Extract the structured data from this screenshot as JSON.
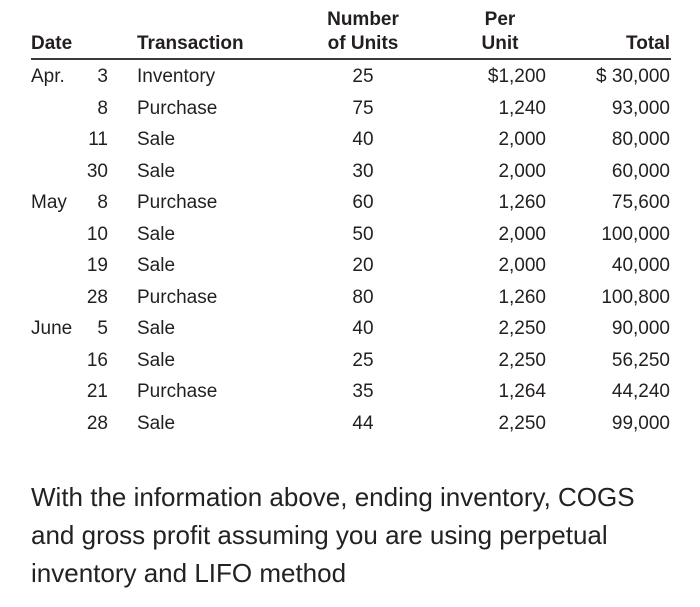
{
  "table": {
    "headers": {
      "date": "Date",
      "transaction": "Transaction",
      "units_line1": "Number",
      "units_line2": "of Units",
      "per_line1": "Per",
      "per_line2": "Unit",
      "total": "Total"
    },
    "rows": [
      {
        "month": "Apr.",
        "day": "3",
        "transaction": "Inventory",
        "units": "25",
        "per_unit": "$1,200",
        "total": "$ 30,000"
      },
      {
        "month": "",
        "day": "8",
        "transaction": "Purchase",
        "units": "75",
        "per_unit": "1,240",
        "total": "93,000"
      },
      {
        "month": "",
        "day": "11",
        "transaction": "Sale",
        "units": "40",
        "per_unit": "2,000",
        "total": "80,000"
      },
      {
        "month": "",
        "day": "30",
        "transaction": "Sale",
        "units": "30",
        "per_unit": "2,000",
        "total": "60,000"
      },
      {
        "month": "May",
        "day": "8",
        "transaction": "Purchase",
        "units": "60",
        "per_unit": "1,260",
        "total": "75,600"
      },
      {
        "month": "",
        "day": "10",
        "transaction": "Sale",
        "units": "50",
        "per_unit": "2,000",
        "total": "100,000"
      },
      {
        "month": "",
        "day": "19",
        "transaction": "Sale",
        "units": "20",
        "per_unit": "2,000",
        "total": "40,000"
      },
      {
        "month": "",
        "day": "28",
        "transaction": "Purchase",
        "units": "80",
        "per_unit": "1,260",
        "total": "100,800"
      },
      {
        "month": "June",
        "day": "5",
        "transaction": "Sale",
        "units": "40",
        "per_unit": "2,250",
        "total": "90,000"
      },
      {
        "month": "",
        "day": "16",
        "transaction": "Sale",
        "units": "25",
        "per_unit": "2,250",
        "total": "56,250"
      },
      {
        "month": "",
        "day": "21",
        "transaction": "Purchase",
        "units": "35",
        "per_unit": "1,264",
        "total": "44,240"
      },
      {
        "month": "",
        "day": "28",
        "transaction": "Sale",
        "units": "44",
        "per_unit": "2,250",
        "total": "99,000"
      }
    ]
  },
  "question": {
    "text": "With the information above, ending inventory, COGS and gross profit assuming you are using perpetual inventory and LIFO method"
  }
}
